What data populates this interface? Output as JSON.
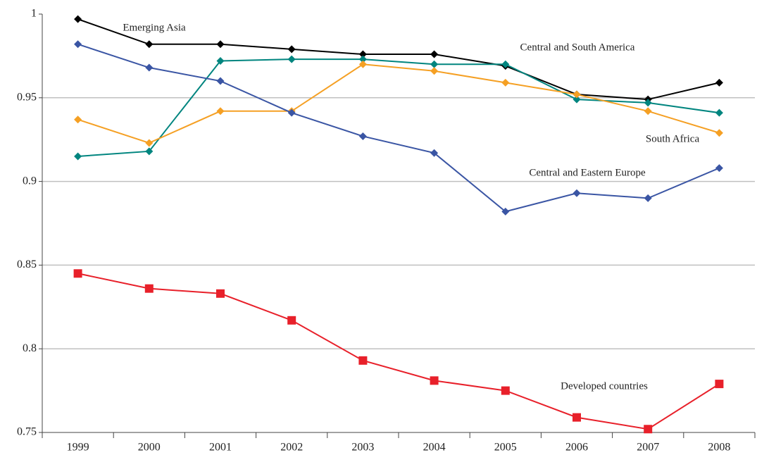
{
  "chart_data": {
    "type": "line",
    "categories": [
      "1999",
      "2000",
      "2001",
      "2002",
      "2003",
      "2004",
      "2005",
      "2006",
      "2007",
      "2008"
    ],
    "series": [
      {
        "name": "Emerging Asia",
        "color": "#000000",
        "marker": "diamond",
        "values": [
          0.997,
          0.982,
          0.982,
          0.979,
          0.976,
          0.976,
          0.969,
          0.952,
          0.949,
          0.959
        ]
      },
      {
        "name": "Central and South America",
        "color": "#00857f",
        "marker": "diamond",
        "values": [
          0.915,
          0.918,
          0.972,
          0.973,
          0.973,
          0.97,
          0.97,
          0.949,
          0.947,
          0.941
        ]
      },
      {
        "name": "South Africa",
        "color": "#f5a024",
        "marker": "diamond",
        "values": [
          0.937,
          0.923,
          0.942,
          0.942,
          0.97,
          0.966,
          0.959,
          0.952,
          0.942,
          0.929
        ]
      },
      {
        "name": "Central and Eastern Europe",
        "color": "#3a55a4",
        "marker": "diamond",
        "values": [
          0.982,
          0.968,
          0.96,
          0.941,
          0.927,
          0.917,
          0.882,
          0.893,
          0.89,
          0.908
        ]
      },
      {
        "name": "Developed countries",
        "color": "#e8202a",
        "marker": "square",
        "values": [
          0.845,
          0.836,
          0.833,
          0.817,
          0.793,
          0.781,
          0.775,
          0.759,
          0.752,
          0.779
        ]
      }
    ],
    "ylim": [
      0.75,
      1
    ],
    "yticks": [
      0.75,
      0.8,
      0.85,
      0.9,
      0.95,
      1
    ],
    "grid": true
  }
}
